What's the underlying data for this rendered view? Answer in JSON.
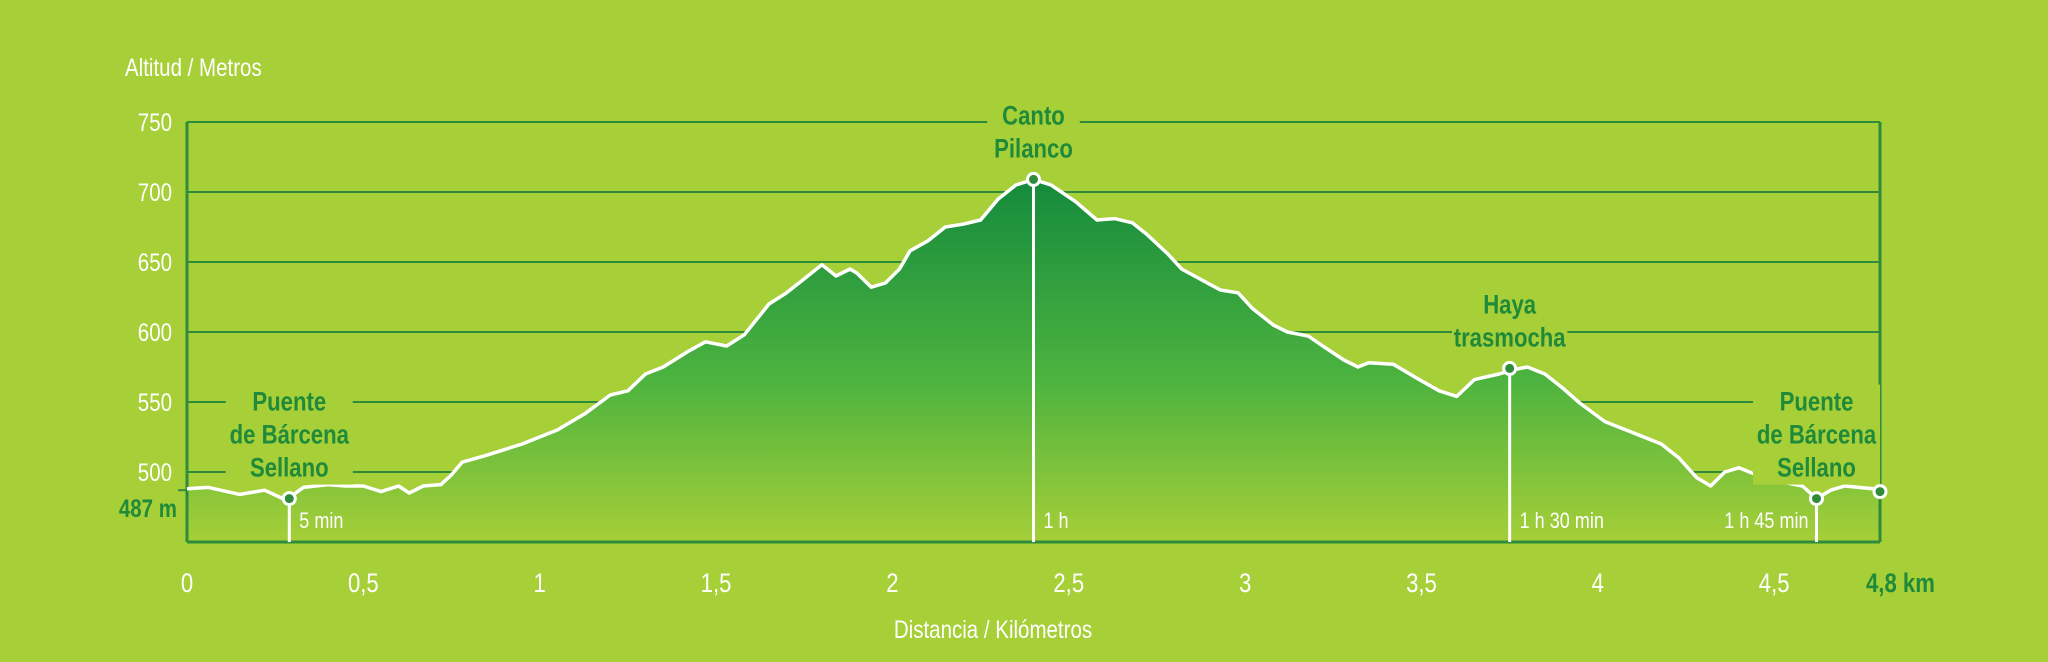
{
  "chart_data": {
    "type": "area",
    "ylabel": "Altitud / Metros",
    "xlabel": "Distancia / Kilómetros",
    "xlim": [
      0,
      4.8
    ],
    "ylim": [
      450,
      750
    ],
    "x_ticks": [
      {
        "v": 0,
        "label": "0"
      },
      {
        "v": 0.5,
        "label": "0,5"
      },
      {
        "v": 1,
        "label": "1"
      },
      {
        "v": 1.5,
        "label": "1,5"
      },
      {
        "v": 2,
        "label": "2"
      },
      {
        "v": 2.5,
        "label": "2,5"
      },
      {
        "v": 3,
        "label": "3"
      },
      {
        "v": 3.5,
        "label": "3,5"
      },
      {
        "v": 4,
        "label": "4"
      },
      {
        "v": 4.5,
        "label": "4,5"
      },
      {
        "v": 4.8,
        "label": "4,8 km",
        "highlight": true
      }
    ],
    "y_ticks": [
      {
        "v": 750,
        "label": "750"
      },
      {
        "v": 700,
        "label": "700"
      },
      {
        "v": 650,
        "label": "650"
      },
      {
        "v": 600,
        "label": "600"
      },
      {
        "v": 550,
        "label": "550"
      },
      {
        "v": 500,
        "label": "500"
      }
    ],
    "start_altitude": {
      "v": 487,
      "label": "487 m"
    },
    "grid": true,
    "profile": [
      [
        0,
        488
      ],
      [
        0.06,
        489
      ],
      [
        0.15,
        484
      ],
      [
        0.22,
        487
      ],
      [
        0.28,
        480
      ],
      [
        0.33,
        489
      ],
      [
        0.4,
        491
      ],
      [
        0.45,
        490
      ],
      [
        0.5,
        490
      ],
      [
        0.55,
        486
      ],
      [
        0.6,
        490
      ],
      [
        0.63,
        485
      ],
      [
        0.67,
        490
      ],
      [
        0.72,
        491
      ],
      [
        0.75,
        498
      ],
      [
        0.78,
        507
      ],
      [
        0.85,
        512
      ],
      [
        0.95,
        520
      ],
      [
        1.05,
        530
      ],
      [
        1.13,
        542
      ],
      [
        1.2,
        555
      ],
      [
        1.25,
        558
      ],
      [
        1.3,
        570
      ],
      [
        1.35,
        575
      ],
      [
        1.42,
        586
      ],
      [
        1.47,
        593
      ],
      [
        1.53,
        590
      ],
      [
        1.58,
        598
      ],
      [
        1.65,
        620
      ],
      [
        1.7,
        628
      ],
      [
        1.76,
        640
      ],
      [
        1.8,
        648
      ],
      [
        1.84,
        640
      ],
      [
        1.88,
        645
      ],
      [
        1.9,
        642
      ],
      [
        1.94,
        632
      ],
      [
        1.98,
        635
      ],
      [
        2.02,
        645
      ],
      [
        2.05,
        658
      ],
      [
        2.1,
        665
      ],
      [
        2.15,
        675
      ],
      [
        2.2,
        677
      ],
      [
        2.25,
        680
      ],
      [
        2.3,
        695
      ],
      [
        2.35,
        705
      ],
      [
        2.4,
        709
      ],
      [
        2.45,
        705
      ],
      [
        2.52,
        693
      ],
      [
        2.58,
        680
      ],
      [
        2.63,
        681
      ],
      [
        2.68,
        678
      ],
      [
        2.72,
        670
      ],
      [
        2.78,
        656
      ],
      [
        2.82,
        645
      ],
      [
        2.9,
        634
      ],
      [
        2.93,
        630
      ],
      [
        2.98,
        628
      ],
      [
        3.02,
        617
      ],
      [
        3.08,
        605
      ],
      [
        3.12,
        600
      ],
      [
        3.18,
        597
      ],
      [
        3.22,
        590
      ],
      [
        3.28,
        580
      ],
      [
        3.32,
        575
      ],
      [
        3.35,
        578
      ],
      [
        3.42,
        577
      ],
      [
        3.48,
        568
      ],
      [
        3.55,
        558
      ],
      [
        3.6,
        554
      ],
      [
        3.65,
        566
      ],
      [
        3.72,
        570
      ],
      [
        3.76,
        573
      ],
      [
        3.8,
        575
      ],
      [
        3.85,
        570
      ],
      [
        3.9,
        560
      ],
      [
        3.95,
        549
      ],
      [
        4.02,
        536
      ],
      [
        4.1,
        528
      ],
      [
        4.18,
        520
      ],
      [
        4.23,
        510
      ],
      [
        4.28,
        496
      ],
      [
        4.32,
        490
      ],
      [
        4.36,
        500
      ],
      [
        4.4,
        503
      ],
      [
        4.43,
        500
      ],
      [
        4.48,
        495
      ],
      [
        4.52,
        493
      ],
      [
        4.58,
        490
      ],
      [
        4.62,
        481
      ],
      [
        4.66,
        487
      ],
      [
        4.7,
        490
      ],
      [
        4.78,
        488
      ],
      [
        4.8,
        486
      ]
    ],
    "points": [
      {
        "x": 0.29,
        "y": 481,
        "name": [
          "Puente",
          "de Bárcena",
          "Sellano"
        ],
        "time": "5 min"
      },
      {
        "x": 2.4,
        "y": 709,
        "name": [
          "Canto",
          "Pilanco"
        ],
        "time": "1 h"
      },
      {
        "x": 3.75,
        "y": 574,
        "name": [
          "Haya",
          "trasmocha"
        ],
        "time": "1 h 30 min"
      },
      {
        "x": 4.62,
        "y": 481,
        "name": [
          "Puente",
          "de Bárcena",
          "Sellano"
        ],
        "time": "1 h 45 min"
      },
      {
        "x": 4.8,
        "y": 486,
        "name": [],
        "time": ""
      }
    ]
  }
}
